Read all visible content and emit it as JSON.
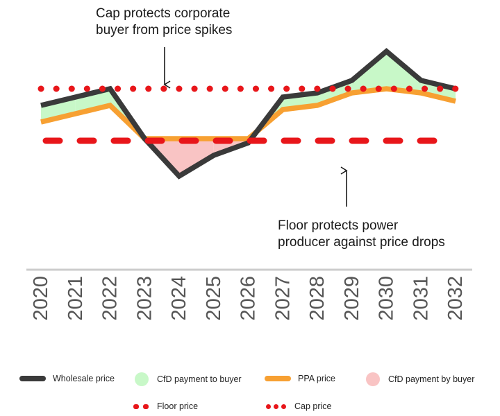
{
  "chart_data": {
    "type": "line",
    "title": "",
    "xlabel": "",
    "ylabel": "",
    "categories": [
      "2020",
      "2021",
      "2022",
      "2023",
      "2024",
      "2025",
      "2026",
      "2027",
      "2028",
      "2029",
      "2030",
      "2031",
      "2032"
    ],
    "series": [
      {
        "name": "Wholesale price",
        "color": "#3a3a3a",
        "values": [
          72,
          76,
          80,
          56,
          38,
          48,
          54,
          76,
          78,
          84,
          98,
          84,
          80
        ]
      },
      {
        "name": "PPA price",
        "color": "#f7a032",
        "values": [
          64,
          68,
          72,
          56,
          56,
          56,
          56,
          70,
          72,
          78,
          80,
          78,
          74
        ]
      }
    ],
    "cap": {
      "name": "Cap price",
      "value": 80
    },
    "floor": {
      "name": "Floor price",
      "value": 55
    },
    "ylim": [
      30,
      100
    ],
    "grid": false,
    "legend_position": "bottom",
    "colors": {
      "cap_floor": "#e8161a",
      "cfd_to_buyer": "#c8f8c8",
      "cfd_by_buyer": "#f9c4c4",
      "axis_line": "#cccccc",
      "tick_label": "#555555"
    }
  },
  "annotations": {
    "cap_line1": "Cap protects corporate",
    "cap_line2": "buyer from price spikes",
    "floor_line1": "Floor protects power",
    "floor_line2": "producer against price drops"
  },
  "legend": {
    "wholesale": "Wholesale price",
    "cfd_to_buyer": "CfD payment to buyer",
    "ppa": "PPA price",
    "cfd_by_buyer": "CfD payment by buyer",
    "floor": "Floor price",
    "cap": "Cap price"
  }
}
